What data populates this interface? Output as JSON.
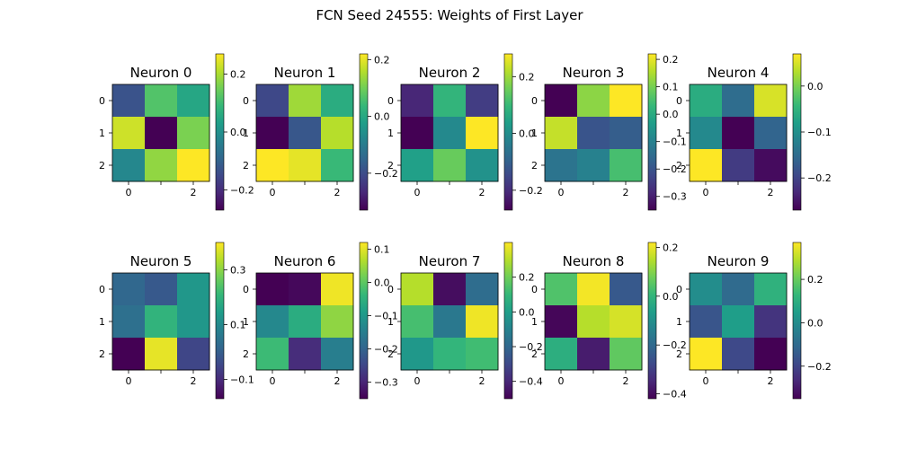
{
  "title": "FCN Seed 24555: Weights of First Layer",
  "colors": {
    "viridis": [
      "#440154",
      "#482878",
      "#3e4989",
      "#31688e",
      "#26828e",
      "#1f9e89",
      "#35b779",
      "#6ece58",
      "#b5de2b",
      "#fde725"
    ]
  },
  "chart_data": {
    "type": "heatmap",
    "title": "FCN Seed 24555: Weights of First Layer",
    "colormap": "viridis",
    "axis_ticks": [
      0,
      1,
      2
    ],
    "panels": [
      {
        "title": "Neuron 0",
        "vmin": -0.27,
        "vmax": 0.27,
        "values": [
          [
            -0.13,
            0.12,
            0.05
          ],
          [
            0.23,
            -0.27,
            0.16
          ],
          [
            -0.02,
            0.18,
            0.27
          ]
        ],
        "cbar_ticks": [
          -0.2,
          0.0,
          0.2
        ],
        "cbar_labels": [
          "−0.2",
          "0.0",
          "0.2"
        ]
      },
      {
        "title": "Neuron 1",
        "vmin": -0.33,
        "vmax": 0.22,
        "values": [
          [
            -0.21,
            0.14,
            0.01
          ],
          [
            -0.33,
            -0.18,
            0.16
          ],
          [
            0.22,
            0.2,
            0.04
          ]
        ],
        "cbar_ticks": [
          -0.2,
          0.0,
          0.2
        ],
        "cbar_labels": [
          "−0.2",
          "0.0",
          "0.2"
        ]
      },
      {
        "title": "Neuron 2",
        "vmin": -0.27,
        "vmax": 0.28,
        "values": [
          [
            -0.21,
            0.09,
            -0.17
          ],
          [
            -0.27,
            -0.01,
            0.28
          ],
          [
            0.04,
            0.15,
            0.01
          ]
        ],
        "cbar_ticks": [
          -0.2,
          0.0,
          0.2
        ],
        "cbar_labels": [
          "−0.2",
          "0.0",
          "0.2"
        ]
      },
      {
        "title": "Neuron 3",
        "vmin": -0.35,
        "vmax": 0.22,
        "values": [
          [
            -0.35,
            0.12,
            0.22
          ],
          [
            0.17,
            -0.2,
            -0.18
          ],
          [
            -0.13,
            -0.1,
            0.05
          ]
        ],
        "cbar_ticks": [
          -0.3,
          -0.2,
          -0.1,
          0.0,
          0.1,
          0.2
        ],
        "cbar_labels": [
          "−0.3",
          "−0.2",
          "−0.1",
          "0.0",
          "0.1",
          "0.2"
        ]
      },
      {
        "title": "Neuron 4",
        "vmin": -0.27,
        "vmax": 0.07,
        "values": [
          [
            -0.06,
            -0.15,
            0.05
          ],
          [
            -0.11,
            -0.27,
            -0.16
          ],
          [
            0.07,
            -0.21,
            -0.26
          ]
        ],
        "cbar_ticks": [
          -0.2,
          -0.1,
          0.0
        ],
        "cbar_labels": [
          "−0.2",
          "−0.1",
          "0.0"
        ]
      },
      {
        "title": "Neuron 5",
        "vmin": -0.17,
        "vmax": 0.4,
        "values": [
          [
            0.02,
            -0.01,
            0.13
          ],
          [
            0.04,
            0.2,
            0.13
          ],
          [
            -0.17,
            0.38,
            -0.05
          ]
        ],
        "cbar_ticks": [
          -0.1,
          0.1,
          0.3
        ],
        "cbar_labels": [
          "−0.1",
          "0.1",
          "0.3"
        ]
      },
      {
        "title": "Neuron 6",
        "vmin": -0.35,
        "vmax": 0.12,
        "values": [
          [
            -0.35,
            -0.34,
            0.11
          ],
          [
            -0.13,
            -0.06,
            0.04
          ],
          [
            -0.03,
            -0.29,
            -0.15
          ]
        ],
        "cbar_ticks": [
          -0.3,
          -0.2,
          -0.1,
          0.0,
          0.1
        ],
        "cbar_labels": [
          "−0.3",
          "−0.2",
          "−0.1",
          "0.0",
          "0.1"
        ]
      },
      {
        "title": "Neuron 7",
        "vmin": -0.5,
        "vmax": 0.4,
        "values": [
          [
            0.3,
            -0.47,
            -0.18
          ],
          [
            0.13,
            -0.14,
            0.38
          ],
          [
            -0.02,
            0.09,
            0.12
          ]
        ],
        "cbar_ticks": [
          -0.4,
          -0.2,
          0.0,
          0.2
        ],
        "cbar_labels": [
          "−0.4",
          "−0.2",
          "0.0",
          "0.2"
        ]
      },
      {
        "title": "Neuron 8",
        "vmin": -0.42,
        "vmax": 0.22,
        "values": [
          [
            0.04,
            0.21,
            -0.24
          ],
          [
            -0.41,
            0.15,
            0.18
          ],
          [
            -0.02,
            -0.37,
            0.06
          ]
        ],
        "cbar_ticks": [
          -0.4,
          -0.2,
          0.0,
          0.2
        ],
        "cbar_labels": [
          "−0.4",
          "−0.2",
          "0.0",
          "0.2"
        ]
      },
      {
        "title": "Neuron 9",
        "vmin": -0.35,
        "vmax": 0.37,
        "values": [
          [
            0.0,
            -0.1,
            0.11
          ],
          [
            -0.16,
            0.05,
            -0.24
          ],
          [
            0.37,
            -0.19,
            -0.35
          ]
        ],
        "cbar_ticks": [
          -0.2,
          0.0,
          0.2
        ],
        "cbar_labels": [
          "−0.2",
          "0.0",
          "0.2"
        ]
      }
    ]
  }
}
